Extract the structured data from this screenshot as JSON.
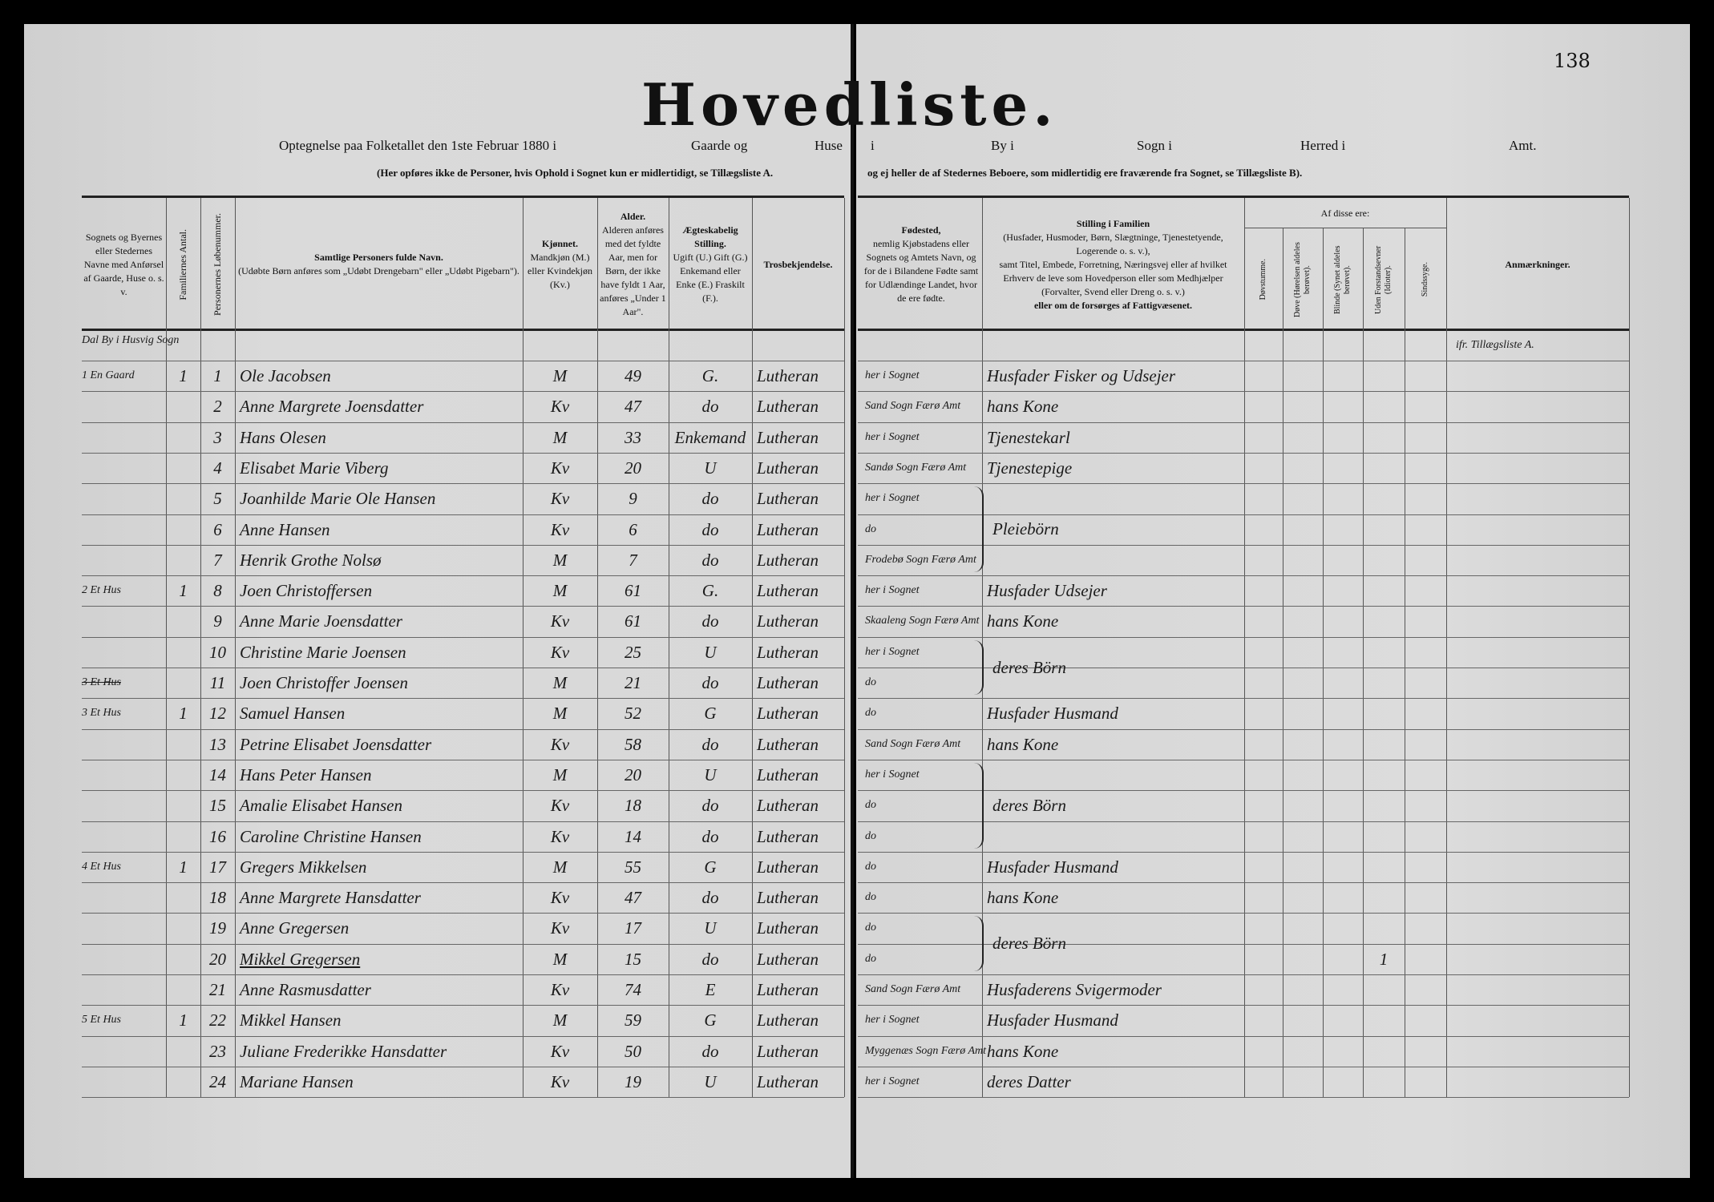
{
  "page_number": "138",
  "title": "Hovedliste.",
  "subtitle": {
    "left": "Optegnelse paa Folketallet den 1ste Februar 1880 i",
    "gaarde": "Gaarde og",
    "huse": "Huse",
    "i": "i",
    "by": "By i",
    "sogn": "Sogn i",
    "herred": "Herred i",
    "amt": "Amt."
  },
  "notes": {
    "left": "(Her opføres ikke de Personer, hvis Ophold i Sognet kun er midlertidigt, se Tillægsliste A.",
    "right": "og ej heller de af Stedernes Beboere, som midlertidig ere fraværende fra Sognet, se Tillægsliste B)."
  },
  "headers": {
    "place": "Sognets og Byernes eller Stedernes Navne med Anførsel af Gaarde, Huse o. s. v.",
    "families": "Familiernes Antal.",
    "serial": "Personernes Løbenummer.",
    "name_title": "Samtlige Personers fulde Navn.",
    "name_note": "(Udøbte Børn anføres som „Udøbt Drengebarn\" eller „Udøbt Pigebarn\").",
    "sex_title": "Kjønnet.",
    "sex_note": "Mandkjøn (M.) eller Kvindekjøn (Kv.)",
    "age_title": "Alder.",
    "age_note": "Alderen anføres med det fyldte Aar, men for Børn, der ikke have fyldt 1 Aar, anføres „Under 1 Aar\".",
    "civil_title": "Ægteskabelig Stilling.",
    "civil_note": "Ugift (U.) Gift (G.) Enkemand eller Enke (E.) Fraskilt (F.).",
    "religion": "Trosbekjendelse.",
    "birthplace_title": "Fødested,",
    "birthplace_note": "nemlig Kjøbstadens eller Sognets og Amtets Navn, og for de i Bilandene Fødte samt for Udlændinge Landet, hvor de ere fødte.",
    "position_title": "Stilling i Familien",
    "position_note1": "(Husfader, Husmoder, Børn, Slægtninge, Tjenestetyende, Logerende o. s. v.),",
    "position_note2": "samt Titel, Embede, Forretning, Næringsvej eller af hvilket Erhverv de leve som Hovedperson eller som Medhjælper (Forvalter, Svend eller Dreng o. s. v.)",
    "position_note3": "eller om de forsørges af Fattigvæsenet.",
    "af_disse": "Af disse ere:",
    "deaf_mute": "Døvstumme.",
    "deaf": "Døve (Hørelsen aldeles berøvet).",
    "blind": "Blinde (Synet aldeles berøvet).",
    "idiots": "Uden Forstandsevner (Idioter).",
    "insane": "Sindssyge.",
    "remarks": "Anmærkninger."
  },
  "preamble_row": {
    "place": "Dal By i Husvig Sogn",
    "remarks": "ifr. Tillægsliste A."
  },
  "rows": [
    {
      "place": "1 En Gaard",
      "fam": "1",
      "no": "1",
      "name": "Ole Jacobsen",
      "sex": "M",
      "age": "49",
      "civil": "G.",
      "religion": "Lutheran",
      "birthplace": "her i Sognet",
      "position": "Husfader Fisker og Udsejer"
    },
    {
      "place": "",
      "fam": "",
      "no": "2",
      "name": "Anne Margrete Joensdatter",
      "sex": "Kv",
      "age": "47",
      "civil": "do",
      "religion": "Lutheran",
      "birthplace": "Sand Sogn Færø Amt",
      "position": "hans Kone"
    },
    {
      "place": "",
      "fam": "",
      "no": "3",
      "name": "Hans Olesen",
      "sex": "M",
      "age": "33",
      "civil": "Enkemand",
      "religion": "Lutheran",
      "birthplace": "her i Sognet",
      "position": "Tjenestekarl"
    },
    {
      "place": "",
      "fam": "",
      "no": "4",
      "name": "Elisabet Marie Viberg",
      "sex": "Kv",
      "age": "20",
      "civil": "U",
      "religion": "Lutheran",
      "birthplace": "Sandø Sogn Færø Amt",
      "position": "Tjenestepige"
    },
    {
      "place": "",
      "fam": "",
      "no": "5",
      "name": "Joanhilde Marie Ole Hansen",
      "sex": "Kv",
      "age": "9",
      "civil": "do",
      "religion": "Lutheran",
      "birthplace": "her i Sognet",
      "position": ""
    },
    {
      "place": "",
      "fam": "",
      "no": "6",
      "name": "Anne Hansen",
      "sex": "Kv",
      "age": "6",
      "civil": "do",
      "religion": "Lutheran",
      "birthplace": "do",
      "position": ""
    },
    {
      "place": "",
      "fam": "",
      "no": "7",
      "name": "Henrik Grothe Nolsø",
      "sex": "M",
      "age": "7",
      "civil": "do",
      "religion": "Lutheran",
      "birthplace": "Frodebø Sogn Færø Amt",
      "position": ""
    },
    {
      "place": "2 Et Hus",
      "fam": "1",
      "no": "8",
      "name": "Joen Christoffersen",
      "sex": "M",
      "age": "61",
      "civil": "G.",
      "religion": "Lutheran",
      "birthplace": "her i Sognet",
      "position": "Husfader Udsejer"
    },
    {
      "place": "",
      "fam": "",
      "no": "9",
      "name": "Anne Marie Joensdatter",
      "sex": "Kv",
      "age": "61",
      "civil": "do",
      "religion": "Lutheran",
      "birthplace": "Skaaleng Sogn Færø Amt",
      "position": "hans Kone"
    },
    {
      "place": "",
      "fam": "",
      "no": "10",
      "name": "Christine Marie Joensen",
      "sex": "Kv",
      "age": "25",
      "civil": "U",
      "religion": "Lutheran",
      "birthplace": "her i Sognet",
      "position": ""
    },
    {
      "place": "3 Et Hus",
      "fam": "",
      "no": "11",
      "name": "Joen Christoffer Joensen",
      "sex": "M",
      "age": "21",
      "civil": "do",
      "religion": "Lutheran",
      "birthplace": "do",
      "position": ""
    },
    {
      "place": "3 Et Hus",
      "fam": "1",
      "no": "12",
      "name": "Samuel Hansen",
      "sex": "M",
      "age": "52",
      "civil": "G",
      "religion": "Lutheran",
      "birthplace": "do",
      "position": "Husfader Husmand"
    },
    {
      "place": "",
      "fam": "",
      "no": "13",
      "name": "Petrine Elisabet Joensdatter",
      "sex": "Kv",
      "age": "58",
      "civil": "do",
      "religion": "Lutheran",
      "birthplace": "Sand Sogn Færø Amt",
      "position": "hans Kone"
    },
    {
      "place": "",
      "fam": "",
      "no": "14",
      "name": "Hans Peter Hansen",
      "sex": "M",
      "age": "20",
      "civil": "U",
      "religion": "Lutheran",
      "birthplace": "her i Sognet",
      "position": ""
    },
    {
      "place": "",
      "fam": "",
      "no": "15",
      "name": "Amalie Elisabet Hansen",
      "sex": "Kv",
      "age": "18",
      "civil": "do",
      "religion": "Lutheran",
      "birthplace": "do",
      "position": ""
    },
    {
      "place": "",
      "fam": "",
      "no": "16",
      "name": "Caroline Christine Hansen",
      "sex": "Kv",
      "age": "14",
      "civil": "do",
      "religion": "Lutheran",
      "birthplace": "do",
      "position": ""
    },
    {
      "place": "4 Et Hus",
      "fam": "1",
      "no": "17",
      "name": "Gregers Mikkelsen",
      "sex": "M",
      "age": "55",
      "civil": "G",
      "religion": "Lutheran",
      "birthplace": "do",
      "position": "Husfader Husmand"
    },
    {
      "place": "",
      "fam": "",
      "no": "18",
      "name": "Anne Margrete Hansdatter",
      "sex": "Kv",
      "age": "47",
      "civil": "do",
      "religion": "Lutheran",
      "birthplace": "do",
      "position": "hans Kone"
    },
    {
      "place": "",
      "fam": "",
      "no": "19",
      "name": "Anne Gregersen",
      "sex": "Kv",
      "age": "17",
      "civil": "U",
      "religion": "Lutheran",
      "birthplace": "do",
      "position": ""
    },
    {
      "place": "",
      "fam": "",
      "no": "20",
      "name": "Mikkel Gregersen",
      "sex": "M",
      "age": "15",
      "civil": "do",
      "religion": "Lutheran",
      "birthplace": "do",
      "position": "",
      "idiot": "1"
    },
    {
      "place": "",
      "fam": "",
      "no": "21",
      "name": "Anne Rasmusdatter",
      "sex": "Kv",
      "age": "74",
      "civil": "E",
      "religion": "Lutheran",
      "birthplace": "Sand Sogn Færø Amt",
      "position": "Husfaderens Svigermoder"
    },
    {
      "place": "5 Et Hus",
      "fam": "1",
      "no": "22",
      "name": "Mikkel Hansen",
      "sex": "M",
      "age": "59",
      "civil": "G",
      "religion": "Lutheran",
      "birthplace": "her i Sognet",
      "position": "Husfader Husmand"
    },
    {
      "place": "",
      "fam": "",
      "no": "23",
      "name": "Juliane Frederikke Hansdatter",
      "sex": "Kv",
      "age": "50",
      "civil": "do",
      "religion": "Lutheran",
      "birthplace": "Myggenæs Sogn Færø Amt",
      "position": "hans Kone"
    },
    {
      "place": "",
      "fam": "",
      "no": "24",
      "name": "Mariane Hansen",
      "sex": "Kv",
      "age": "19",
      "civil": "U",
      "religion": "Lutheran",
      "birthplace": "her i Sognet",
      "position": "deres Datter"
    }
  ],
  "bracket_groups": [
    {
      "from": 5,
      "to": 7,
      "label": "Pleiebörn"
    },
    {
      "from": 10,
      "to": 11,
      "label": "deres Börn"
    },
    {
      "from": 14,
      "to": 16,
      "label": "deres Börn"
    },
    {
      "from": 19,
      "to": 20,
      "label": "deres Börn"
    }
  ]
}
